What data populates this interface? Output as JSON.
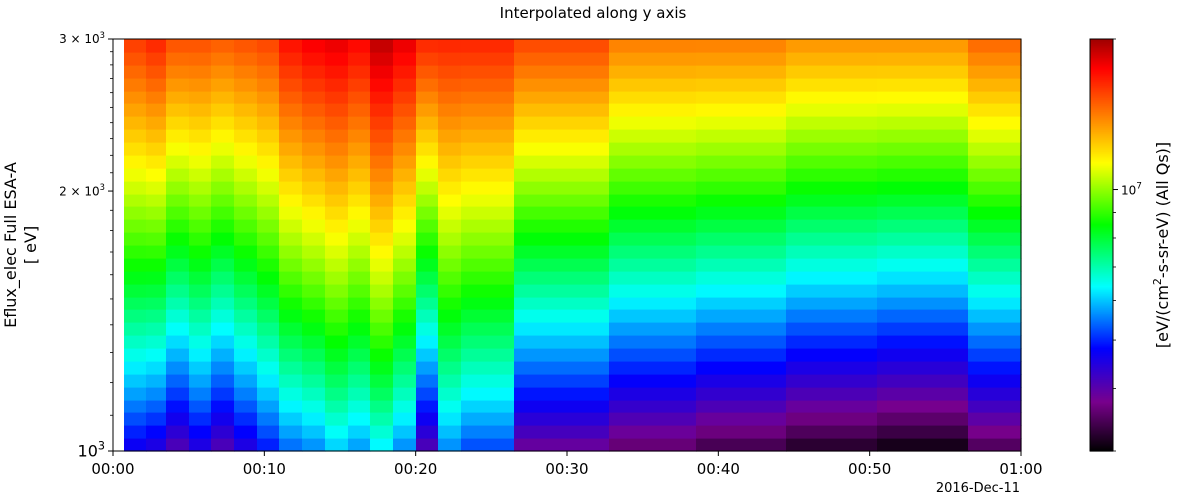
{
  "chart_data": {
    "type": "heatmap",
    "title": "Interpolated along y axis",
    "ylabel_line1": "Eflux_elec Full ESA-A",
    "ylabel_line2": "[ eV]",
    "colorbar_label_pre": "[eV/(cm",
    "colorbar_label_sup": "2",
    "colorbar_label_post": "-s-sr-eV) (All Qs)]",
    "date_label": "2016-Dec-11",
    "x_axis": {
      "unit": "minutes after 00:00",
      "range": [
        0,
        60
      ],
      "ticks": [
        {
          "value": 0,
          "label": "00:00"
        },
        {
          "value": 10,
          "label": "00:10"
        },
        {
          "value": 20,
          "label": "00:20"
        },
        {
          "value": 30,
          "label": "00:30"
        },
        {
          "value": 40,
          "label": "00:40"
        },
        {
          "value": 50,
          "label": "00:50"
        },
        {
          "value": 60,
          "label": "01:00"
        }
      ]
    },
    "y_axis": {
      "scale": "log",
      "unit": "eV",
      "range": [
        1000,
        3000
      ],
      "major_ticks": [
        {
          "value": 1000,
          "label": "10",
          "sup": "3",
          "big": true
        },
        {
          "value": 2000,
          "label": "2 × 10",
          "sup": "3",
          "big": false
        },
        {
          "value": 3000,
          "label": "3 × 10",
          "sup": "3",
          "big": false
        }
      ]
    },
    "colorbar": {
      "scale": "log",
      "range": [
        3000000,
        20000000
      ],
      "major_tick": {
        "value": 10000000,
        "label": "10",
        "sup": "7"
      },
      "minor_ticks": [
        3000000,
        4000000,
        5000000,
        6000000,
        7000000,
        8000000,
        9000000,
        20000000
      ],
      "colormap": "spedas"
    },
    "energy_bins_y": 32,
    "time_columns": [
      {
        "t0": 0.7,
        "t1": 2.2,
        "low": 0.22,
        "high": 0.88
      },
      {
        "t0": 2.2,
        "t1": 3.5,
        "low": 0.2,
        "high": 0.9
      },
      {
        "t0": 3.5,
        "t1": 5.0,
        "low": 0.15,
        "high": 0.86
      },
      {
        "t0": 5.0,
        "t1": 6.5,
        "low": 0.2,
        "high": 0.86
      },
      {
        "t0": 6.5,
        "t1": 8.0,
        "low": 0.15,
        "high": 0.85
      },
      {
        "t0": 8.0,
        "t1": 9.5,
        "low": 0.2,
        "high": 0.86
      },
      {
        "t0": 9.5,
        "t1": 11.0,
        "low": 0.25,
        "high": 0.87
      },
      {
        "t0": 11.0,
        "t1": 12.5,
        "low": 0.3,
        "high": 0.92
      },
      {
        "t0": 12.5,
        "t1": 14.0,
        "low": 0.32,
        "high": 0.94
      },
      {
        "t0": 14.0,
        "t1": 15.5,
        "low": 0.36,
        "high": 0.95
      },
      {
        "t0": 15.5,
        "t1": 17.0,
        "low": 0.33,
        "high": 0.93
      },
      {
        "t0": 17.0,
        "t1": 18.5,
        "low": 0.38,
        "high": 0.98
      },
      {
        "t0": 18.5,
        "t1": 20.0,
        "low": 0.32,
        "high": 0.95
      },
      {
        "t0": 20.0,
        "t1": 21.5,
        "low": 0.15,
        "high": 0.9
      },
      {
        "t0": 21.5,
        "t1": 23.0,
        "low": 0.32,
        "high": 0.9
      },
      {
        "t0": 23.0,
        "t1": 26.5,
        "low": 0.28,
        "high": 0.9
      },
      {
        "t0": 26.5,
        "t1": 32.8,
        "low": 0.12,
        "high": 0.87
      },
      {
        "t0": 32.8,
        "t1": 38.5,
        "low": 0.08,
        "high": 0.82
      },
      {
        "t0": 38.5,
        "t1": 44.5,
        "low": 0.05,
        "high": 0.82
      },
      {
        "t0": 44.5,
        "t1": 50.5,
        "low": 0.02,
        "high": 0.8
      },
      {
        "t0": 50.5,
        "t1": 56.5,
        "low": 0.0,
        "high": 0.8
      },
      {
        "t0": 56.5,
        "t1": 60.0,
        "low": 0.06,
        "high": 0.84
      }
    ]
  }
}
